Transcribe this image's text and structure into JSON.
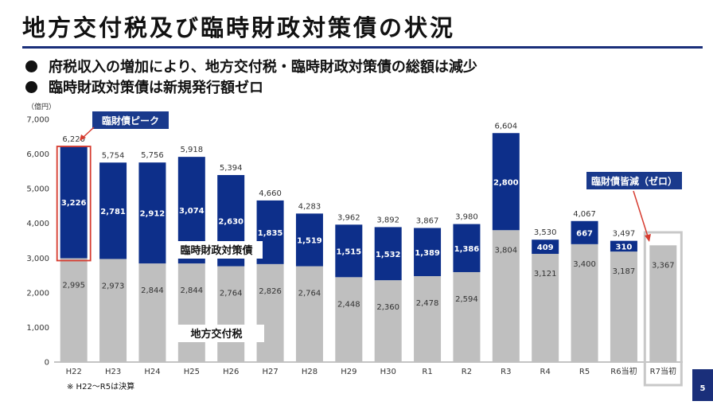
{
  "title": "地方交付税及び臨時財政対策債の状況",
  "bullets": [
    "府税収入の増加により、地方交付税・臨時財政対策債の総額は減少",
    "臨時財政対策債は新規発行額ゼロ"
  ],
  "footnote": "※ H22〜R5は決算",
  "page_number": "5",
  "colors": {
    "navy": "#0d2f8a",
    "gray": "#bfbfbf",
    "red": "#d63b2f",
    "frame_gray": "#c8c8c8",
    "callout_bg": "#1a3a8c"
  },
  "chart_data": {
    "type": "bar",
    "stacked": true,
    "unit_label": "（億円）",
    "categories": [
      "H22",
      "H23",
      "H24",
      "H25",
      "H26",
      "H27",
      "H28",
      "H29",
      "H30",
      "R1",
      "R2",
      "R3",
      "R4",
      "R5",
      "R6当初",
      "R7当初"
    ],
    "series": [
      {
        "name": "地方交付税",
        "values": [
          2995,
          2973,
          2844,
          2844,
          2764,
          2826,
          2764,
          2448,
          2360,
          2478,
          2594,
          3804,
          3121,
          3400,
          3187,
          3367
        ]
      },
      {
        "name": "臨時財政対策債",
        "values": [
          3226,
          2781,
          2912,
          3074,
          2630,
          1835,
          1519,
          1515,
          1532,
          1389,
          1386,
          2800,
          409,
          667,
          310,
          0
        ]
      }
    ],
    "totals": [
      6220,
      5754,
      5756,
      5918,
      5394,
      4660,
      4283,
      3962,
      3892,
      3867,
      3980,
      6604,
      3530,
      4067,
      3497,
      null
    ],
    "yticks": [
      "0",
      "1,000",
      "2,000",
      "3,000",
      "4,000",
      "5,000",
      "6,000",
      "7,000"
    ],
    "ylim": [
      0,
      7000
    ],
    "value_labels": {
      "gray": [
        "2,995",
        "2,973",
        "2,844",
        "2,844",
        "2,764",
        "2,826",
        "2,764",
        "2,448",
        "2,360",
        "2,478",
        "2,594",
        "3,804",
        "3,121",
        "3,400",
        "3,187",
        "3,367"
      ],
      "navy": [
        "3,226",
        "2,781",
        "2,912",
        "3,074",
        "2,630",
        "1,835",
        "1,519",
        "1,515",
        "1,532",
        "1,389",
        "1,386",
        "2,800",
        "409",
        "667",
        "310",
        ""
      ],
      "total": [
        "6,220",
        "5,754",
        "5,756",
        "5,918",
        "5,394",
        "4,660",
        "4,283",
        "3,962",
        "3,892",
        "3,867",
        "3,980",
        "6,604",
        "3,530",
        "4,067",
        "3,497",
        ""
      ]
    },
    "series_labels": {
      "navy": "臨時財政対策債",
      "gray": "地方交付税"
    },
    "annotations": {
      "peak": "臨財債ピーク",
      "zero": "臨財債皆減（ゼロ）"
    }
  }
}
